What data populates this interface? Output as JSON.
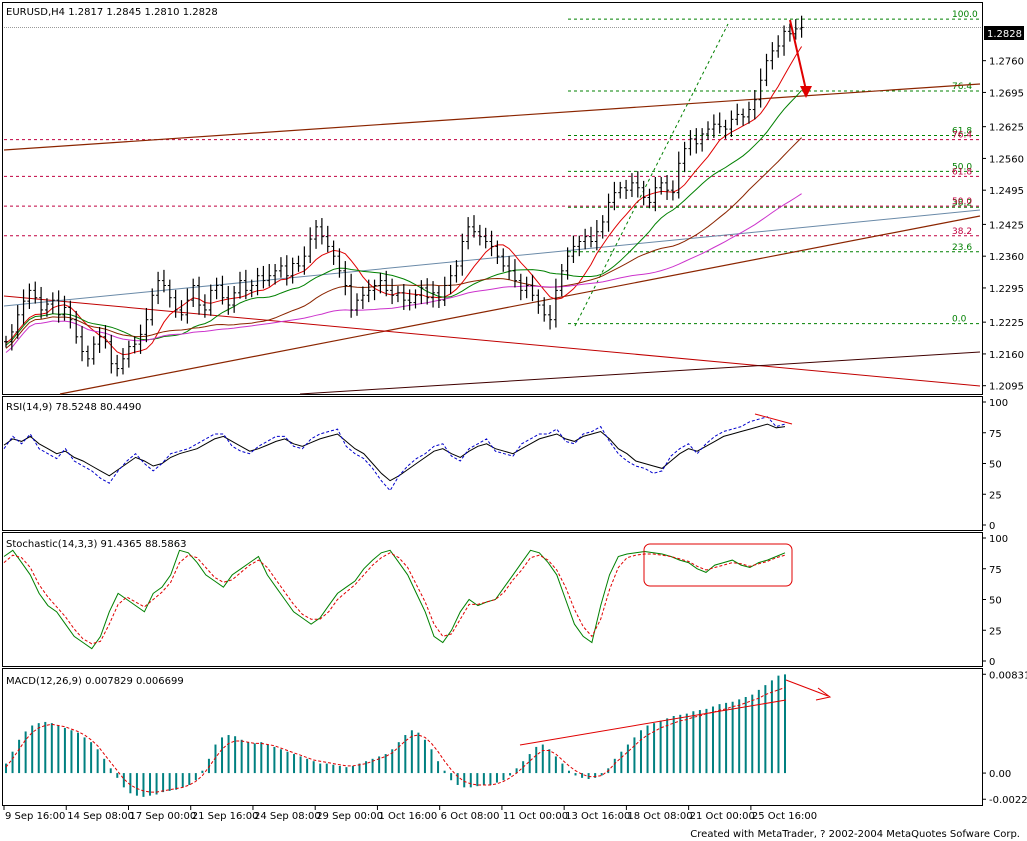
{
  "chart_data": [
    {
      "type": "candlestick",
      "pane": "price",
      "title": "EURUSD,H4  1.2817 1.2845 1.2810 1.2828",
      "ylim": [
        1.2078,
        1.2878
      ],
      "y_ticks": [
        "1.2760",
        "1.2695",
        "1.2625",
        "1.2560",
        "1.2495",
        "1.2425",
        "1.2360",
        "1.2295",
        "1.2225",
        "1.2160",
        "1.2095"
      ],
      "current_price": "1.2828",
      "bars_close": [
        1.2185,
        1.2205,
        1.224,
        1.2268,
        1.229,
        1.2275,
        1.225,
        1.2262,
        1.227,
        1.224,
        1.2255,
        1.223,
        1.2195,
        1.2165,
        1.215,
        1.218,
        1.2195,
        1.2185,
        1.214,
        1.213,
        1.215,
        1.2175,
        1.218,
        1.22,
        1.223,
        1.228,
        1.231,
        1.23,
        1.2275,
        1.225,
        1.224,
        1.227,
        1.23,
        1.226,
        1.225,
        1.229,
        1.23,
        1.2275,
        1.226,
        1.2285,
        1.231,
        1.229,
        1.23,
        1.232,
        1.231,
        1.232,
        1.233,
        1.234,
        1.232,
        1.2345,
        1.234,
        1.236,
        1.2395,
        1.242,
        1.24,
        1.238,
        1.236,
        1.233,
        1.23,
        1.225,
        1.227,
        1.228,
        1.229,
        1.23,
        1.231,
        1.229,
        1.228,
        1.2285,
        1.227,
        1.2265,
        1.228,
        1.2295,
        1.2275,
        1.2285,
        1.227,
        1.23,
        1.232,
        1.234,
        1.239,
        1.242,
        1.241,
        1.24,
        1.239,
        1.238,
        1.236,
        1.234,
        1.233,
        1.231,
        1.229,
        1.23,
        1.228,
        1.226,
        1.224,
        1.223,
        1.229,
        1.233,
        1.236,
        1.238,
        1.239,
        1.24,
        1.239,
        1.241,
        1.243,
        1.247,
        1.249,
        1.25,
        1.2495,
        1.251,
        1.25,
        1.248,
        1.247,
        1.25,
        1.251,
        1.2495,
        1.249,
        1.255,
        1.258,
        1.26,
        1.259,
        1.261,
        1.262,
        1.263,
        1.2625,
        1.262,
        1.264,
        1.265,
        1.2645,
        1.266,
        1.268,
        1.272,
        1.276,
        1.278,
        1.279,
        1.282,
        1.2815,
        1.2825,
        1.2828
      ],
      "overlays": [
        {
          "name": "Fibonacci retracement (green)",
          "levels": [
            "100.0",
            "76.4",
            "61.8",
            "50.0",
            "38.2",
            "23.6",
            "0.0"
          ]
        },
        {
          "name": "Fibonacci retracement (red)",
          "levels": [
            "76.4",
            "61.8",
            "50.0",
            "38.2"
          ]
        }
      ],
      "colors": {
        "up": "#000000",
        "ma_red": "#e00000",
        "ma_green": "#008000",
        "ma_brown": "#8b2500",
        "ma_violet": "#cc33cc",
        "ma_steel": "#6a8aa8",
        "fib_green": "#008000",
        "fib_red": "#c00040",
        "annotation": "#e00000"
      }
    },
    {
      "type": "line",
      "pane": "rsi",
      "title": "RSI(14,9) 78.5248 80.4490",
      "ylim": [
        0,
        100
      ],
      "y_ticks": [
        "100",
        "75",
        "50",
        "25",
        "0"
      ],
      "series": [
        {
          "values": [
            65,
            70,
            68,
            72,
            66,
            62,
            58,
            60,
            55,
            52,
            48,
            44,
            40,
            45,
            50,
            55,
            52,
            48,
            50,
            55,
            58,
            60,
            62,
            66,
            70,
            72,
            68,
            64,
            60,
            62,
            65,
            68,
            70,
            66,
            64,
            67,
            70,
            72,
            74,
            68,
            62,
            58,
            50,
            42,
            36,
            40,
            45,
            50,
            55,
            60,
            62,
            58,
            55,
            60,
            64,
            66,
            62,
            60,
            58,
            62,
            66,
            70,
            72,
            74,
            70,
            68,
            72,
            74,
            76,
            70,
            62,
            58,
            52,
            50,
            48,
            46,
            52,
            58,
            62,
            60,
            64,
            68,
            72,
            74,
            76,
            78,
            80,
            82,
            79,
            80
          ]
        },
        {
          "values": [
            62,
            72,
            66,
            74,
            62,
            58,
            54,
            62,
            52,
            48,
            44,
            38,
            34,
            44,
            52,
            58,
            50,
            44,
            50,
            58,
            60,
            62,
            66,
            70,
            74,
            74,
            64,
            60,
            58,
            64,
            68,
            72,
            72,
            64,
            62,
            70,
            74,
            76,
            78,
            64,
            58,
            54,
            46,
            36,
            28,
            40,
            48,
            54,
            58,
            64,
            66,
            56,
            52,
            62,
            66,
            70,
            60,
            58,
            56,
            66,
            70,
            74,
            74,
            78,
            68,
            66,
            74,
            76,
            80,
            68,
            58,
            52,
            48,
            46,
            42,
            44,
            56,
            62,
            66,
            58,
            66,
            72,
            76,
            78,
            80,
            84,
            86,
            88,
            80,
            82
          ]
        }
      ],
      "colors": {
        "line": "#000000",
        "signal": "#0000cc",
        "annotation": "#e00000"
      }
    },
    {
      "type": "line",
      "pane": "stochastic",
      "title": "Stochastic(14,3,3) 91.4365 88.5863",
      "ylim": [
        0,
        100
      ],
      "y_ticks": [
        "100",
        "75",
        "50",
        "25",
        "0"
      ],
      "series": [
        {
          "values": [
            85,
            90,
            80,
            70,
            55,
            45,
            40,
            30,
            20,
            15,
            10,
            20,
            40,
            55,
            50,
            45,
            40,
            55,
            60,
            70,
            90,
            88,
            80,
            70,
            65,
            60,
            70,
            75,
            80,
            85,
            70,
            60,
            50,
            40,
            35,
            30,
            35,
            45,
            55,
            60,
            65,
            75,
            82,
            88,
            90,
            80,
            70,
            55,
            40,
            20,
            15,
            25,
            40,
            50,
            45,
            48,
            50,
            60,
            70,
            80,
            90,
            88,
            80,
            70,
            50,
            30,
            20,
            15,
            45,
            70,
            85,
            87,
            88,
            89,
            88,
            87,
            85,
            82,
            80,
            75,
            72,
            78,
            80,
            82,
            78,
            76,
            80,
            82,
            85,
            88
          ]
        },
        {
          "values": [
            80,
            86,
            84,
            76,
            62,
            52,
            44,
            36,
            26,
            18,
            14,
            16,
            30,
            46,
            52,
            48,
            44,
            50,
            56,
            64,
            80,
            86,
            84,
            76,
            68,
            64,
            66,
            72,
            78,
            82,
            76,
            66,
            56,
            46,
            38,
            34,
            34,
            40,
            50,
            56,
            62,
            70,
            78,
            84,
            88,
            84,
            76,
            62,
            48,
            30,
            20,
            22,
            34,
            46,
            46,
            48,
            50,
            56,
            66,
            74,
            84,
            86,
            82,
            74,
            60,
            42,
            28,
            20,
            34,
            58,
            76,
            84,
            86,
            87,
            87,
            86,
            85,
            83,
            81,
            77,
            74,
            76,
            78,
            80,
            79,
            77,
            79,
            81,
            84,
            86
          ]
        }
      ],
      "colors": {
        "main": "#008000",
        "signal": "#e00000",
        "annotation": "#e00000"
      }
    },
    {
      "type": "bar",
      "pane": "macd",
      "title": "MACD(12,26,9) 0.007829 0.006699",
      "ylim": [
        -0.0026,
        0.0085
      ],
      "y_ticks": [
        "0.00831",
        "0.00",
        "-0.0022"
      ],
      "series": [
        {
          "values": [
            0.0008,
            0.0018,
            0.0028,
            0.0035,
            0.004,
            0.0042,
            0.0043,
            0.0042,
            0.004,
            0.0038,
            0.0036,
            0.0034,
            0.003,
            0.0026,
            0.002,
            0.0012,
            0.0004,
            -0.0004,
            -0.0012,
            -0.0017,
            -0.0019,
            -0.002,
            -0.0019,
            -0.0018,
            -0.0016,
            -0.0015,
            -0.0014,
            -0.0012,
            -0.001,
            -0.0006,
            0.0002,
            0.0012,
            0.0024,
            0.003,
            0.0032,
            0.0031,
            0.0028,
            0.0026,
            0.0025,
            0.0026,
            0.0024,
            0.0022,
            0.002,
            0.0018,
            0.0016,
            0.0014,
            0.0012,
            0.001,
            0.0008,
            0.0008,
            0.0007,
            0.0006,
            0.0005,
            0.0006,
            0.0008,
            0.001,
            0.0012,
            0.0014,
            0.0016,
            0.002,
            0.0026,
            0.0032,
            0.0036,
            0.0034,
            0.0028,
            0.002,
            0.001,
            0.0002,
            -0.0006,
            -0.001,
            -0.0012,
            -0.0012,
            -0.0011,
            -0.001,
            -0.001,
            -0.0008,
            -0.0006,
            -0.0002,
            0.0004,
            0.001,
            0.0016,
            0.0022,
            0.0024,
            0.002,
            0.0014,
            0.0008,
            0.0002,
            -0.0002,
            -0.0004,
            -0.0005,
            -0.0004,
            -0.0002,
            0.0004,
            0.0012,
            0.0018,
            0.0024,
            0.003,
            0.0036,
            0.004,
            0.0042,
            0.0044,
            0.0046,
            0.0048,
            0.0049,
            0.005,
            0.0052,
            0.0053,
            0.0054,
            0.0056,
            0.0058,
            0.0059,
            0.006,
            0.0062,
            0.0064,
            0.0066,
            0.007,
            0.0074,
            0.0078,
            0.0082,
            0.0083
          ]
        },
        {
          "values": [
            0.0005,
            0.0012,
            0.002,
            0.0028,
            0.0034,
            0.0038,
            0.004,
            0.0041,
            0.004,
            0.0039,
            0.0037,
            0.0035,
            0.0032,
            0.0028,
            0.0023,
            0.0016,
            0.0009,
            0.0002,
            -0.0005,
            -0.001,
            -0.0013,
            -0.0015,
            -0.0016,
            -0.0016,
            -0.0015,
            -0.0014,
            -0.0013,
            -0.0012,
            -0.001,
            -0.0007,
            -0.0002,
            0.0005,
            0.0013,
            0.002,
            0.0025,
            0.0027,
            0.0027,
            0.0026,
            0.0025,
            0.0025,
            0.0024,
            0.0023,
            0.0021,
            0.0019,
            0.0017,
            0.0015,
            0.0013,
            0.0011,
            0.001,
            0.0009,
            0.0008,
            0.0007,
            0.0006,
            0.0006,
            0.0007,
            0.0008,
            0.001,
            0.0012,
            0.0014,
            0.0017,
            0.0022,
            0.0027,
            0.0031,
            0.0032,
            0.003,
            0.0025,
            0.0018,
            0.001,
            0.0003,
            -0.0003,
            -0.0007,
            -0.0009,
            -0.001,
            -0.001,
            -0.001,
            -0.0009,
            -0.0007,
            -0.0004,
            0.0,
            0.0005,
            0.001,
            0.0015,
            0.0019,
            0.0019,
            0.0016,
            0.0011,
            0.0006,
            0.0002,
            -0.0001,
            -0.0003,
            -0.0003,
            -0.0002,
            0.0002,
            0.0008,
            0.0013,
            0.0018,
            0.0023,
            0.0028,
            0.0032,
            0.0035,
            0.0038,
            0.004,
            0.0042,
            0.0044,
            0.0045,
            0.0047,
            0.0048,
            0.005,
            0.0051,
            0.0053,
            0.0054,
            0.0056,
            0.0057,
            0.0059,
            0.0061,
            0.0063,
            0.0066,
            0.0068,
            0.007,
            0.0072
          ]
        }
      ],
      "colors": {
        "histogram": "#008080",
        "signal": "#e00000",
        "annotation": "#e00000"
      }
    }
  ],
  "x_axis": {
    "tick_labels": [
      "9 Sep 16:00",
      "14 Sep 08:00",
      "17 Sep 00:00",
      "21 Sep 16:00",
      "24 Sep 08:00",
      "29 Sep 00:00",
      "1 Oct 16:00",
      "6 Oct 08:00",
      "11 Oct 00:00",
      "13 Oct 16:00",
      "18 Oct 08:00",
      "21 Oct 00:00",
      "25 Oct 16:00"
    ]
  },
  "footer": "Created with MetaTrader, ? 2002-2004 MetaQuotes Sofware Corp."
}
